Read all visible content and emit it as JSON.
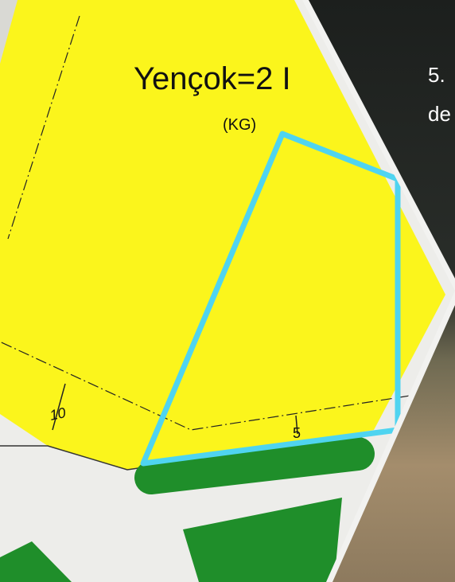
{
  "map": {
    "labels": {
      "zone": "Yençok=2 I",
      "kg": "(KG)",
      "dim_left": "10",
      "dim_right": "5"
    },
    "overlay_text": [
      "5.",
      "de"
    ]
  }
}
